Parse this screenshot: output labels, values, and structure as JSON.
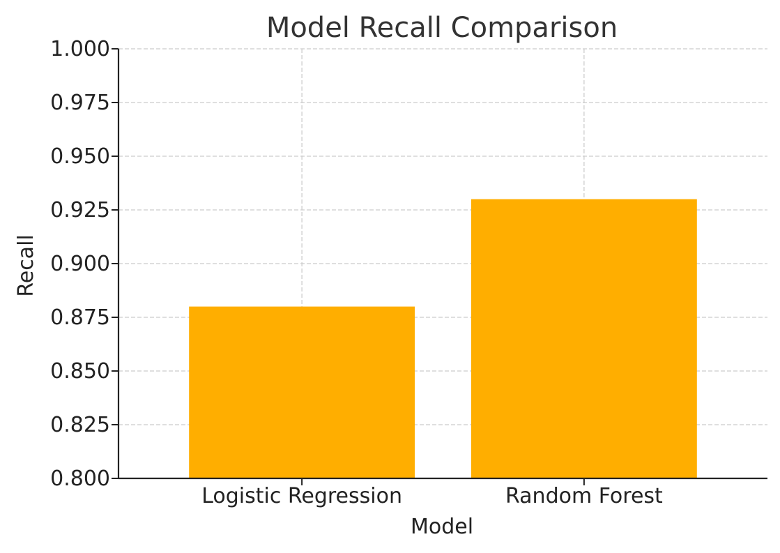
{
  "chart_data": {
    "type": "bar",
    "title": "Model Recall Comparison",
    "xlabel": "Model",
    "ylabel": "Recall",
    "categories": [
      "Logistic Regression",
      "Random Forest"
    ],
    "values": [
      0.88,
      0.93
    ],
    "ylim": [
      0.8,
      1.0
    ],
    "yticks": [
      "0.800",
      "0.825",
      "0.850",
      "0.875",
      "0.900",
      "0.925",
      "0.950",
      "0.975",
      "1.000"
    ],
    "ytick_values": [
      0.8,
      0.825,
      0.85,
      0.875,
      0.9,
      0.925,
      0.95,
      0.975,
      1.0
    ],
    "grid": true,
    "bar_color": "#FFAE00",
    "grid_color": "#cccccc"
  }
}
